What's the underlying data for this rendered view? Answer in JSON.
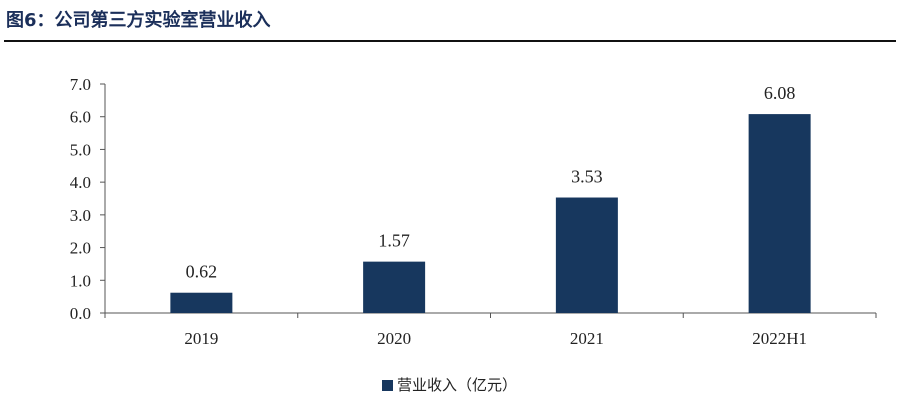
{
  "figure_title": "图6：公司第三方实验室营业收入",
  "chart_data": {
    "type": "bar",
    "categories": [
      "2019",
      "2020",
      "2021",
      "2022H1"
    ],
    "series": [
      {
        "name": "营业收入（亿元）",
        "values": [
          0.62,
          1.57,
          3.53,
          6.08
        ]
      }
    ],
    "data_labels": [
      "0.62",
      "1.57",
      "3.53",
      "6.08"
    ],
    "ylim": [
      0,
      7
    ],
    "y_ticks": [
      "0.0",
      "1.0",
      "2.0",
      "3.0",
      "4.0",
      "5.0",
      "6.0",
      "7.0"
    ],
    "bar_color": "#17375e",
    "grid": false,
    "legend_position": "bottom"
  }
}
